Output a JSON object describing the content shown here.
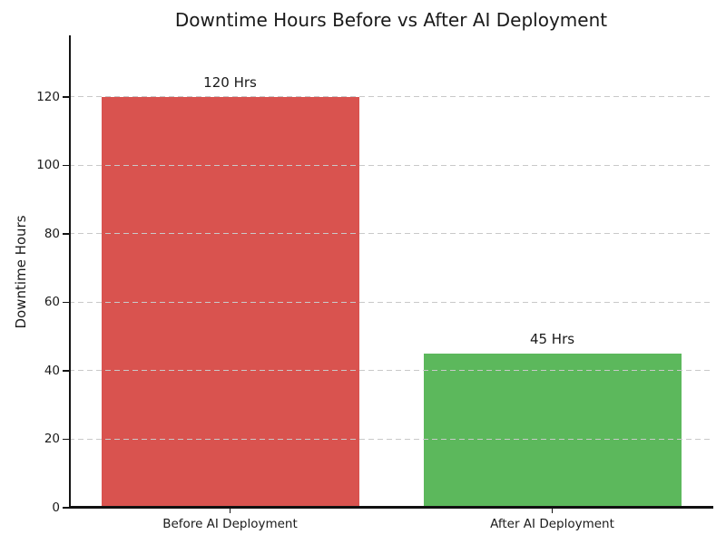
{
  "chart_data": {
    "type": "bar",
    "title": "Downtime Hours Before vs After AI Deployment",
    "xlabel": "",
    "ylabel": "Downtime Hours",
    "categories": [
      "Before AI Deployment",
      "After AI Deployment"
    ],
    "values": [
      120,
      45
    ],
    "bar_labels": [
      "120 Hrs",
      "45 Hrs"
    ],
    "bar_colors": [
      "#d9534f",
      "#5cb85c"
    ],
    "yticks": [
      0,
      20,
      40,
      60,
      80,
      100,
      120
    ],
    "ylim": [
      0,
      138
    ],
    "grid": "horizontal-dashed",
    "grid_color": "#c9c9c9",
    "grid_above_bars": true,
    "legend": "none",
    "background_color": "#ffffff",
    "title_color": "#1a1a1a",
    "bar_width_fraction": 0.8
  }
}
